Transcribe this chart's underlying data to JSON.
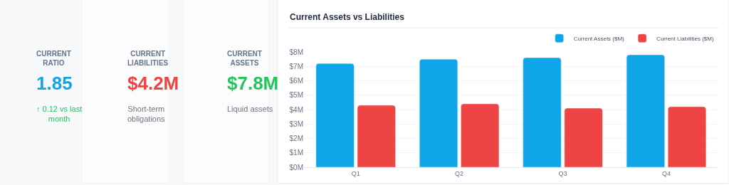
{
  "chart_data": [
    {
      "type": "other",
      "title": "CURRENT RATIO",
      "annotations": [
        "1.85",
        "↑ 0.12 vs last month"
      ],
      "colors": [
        "#0ea5e9",
        "#22c55e"
      ]
    },
    {
      "type": "other",
      "title": "CURRENT LIABILITIES",
      "annotations": [
        "$4.2M",
        "Short-term obligations"
      ],
      "colors": [
        "#ef4444",
        "#6b7280"
      ]
    },
    {
      "type": "other",
      "title": "CURRENT ASSETS",
      "annotations": [
        "$7.8M",
        "Liquid assets"
      ],
      "colors": [
        "#22c55e",
        "#6b7280"
      ]
    },
    {
      "type": "bar",
      "title": "Current Assets vs Liabilities",
      "categories": [
        "Q1",
        "Q2",
        "Q3",
        "Q4"
      ],
      "series": [
        {
          "name": "Current Assets ($M)",
          "color": "#0ea5e9",
          "values": [
            7.2,
            7.5,
            7.6,
            7.8
          ]
        },
        {
          "name": "Current Liabilities ($M)",
          "color": "#ef4444",
          "values": [
            4.3,
            4.4,
            4.1,
            4.2
          ]
        }
      ],
      "ylim": [
        0,
        8
      ],
      "yticks": [
        {
          "value": 0,
          "label": "$0M"
        },
        {
          "value": 1,
          "label": "$1M"
        },
        {
          "value": 2,
          "label": "$2M"
        },
        {
          "value": 3,
          "label": "$3M"
        },
        {
          "value": 4,
          "label": "$4M"
        },
        {
          "value": 5,
          "label": "$5M"
        },
        {
          "value": 6,
          "label": "$6M"
        },
        {
          "value": 7,
          "label": "$7M"
        },
        {
          "value": 8,
          "label": "$8M"
        }
      ],
      "grid": "y",
      "legend": "top right"
    }
  ]
}
